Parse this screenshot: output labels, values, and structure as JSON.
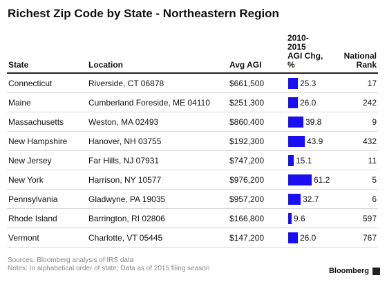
{
  "title": "Richest Zip Code by State - Northeastern Region",
  "headers": {
    "state": "State",
    "location": "Location",
    "avg_agi": "Avg AGI",
    "agi_chg_lines": [
      "2010-",
      "2015",
      "AGI Chg,",
      "%"
    ],
    "rank_lines": [
      "National",
      "Rank"
    ]
  },
  "chart_data": {
    "type": "table",
    "columns": [
      "State",
      "Location",
      "Avg AGI",
      "2010-2015 AGI Chg, %",
      "National Rank"
    ],
    "rows": [
      {
        "state": "Connecticut",
        "location": "Riverside, CT 06878",
        "avg_agi": "$661,500",
        "chg": 25.3,
        "chg_label": "25.3",
        "rank": "17"
      },
      {
        "state": "Maine",
        "location": "Cumberland Foreside, ME 04110",
        "avg_agi": "$251,300",
        "chg": 26.0,
        "chg_label": "26.0",
        "rank": "242"
      },
      {
        "state": "Massachusetts",
        "location": "Weston, MA 02493",
        "avg_agi": "$860,400",
        "chg": 39.8,
        "chg_label": "39.8",
        "rank": "9"
      },
      {
        "state": "New Hampshire",
        "location": "Hanover, NH 03755",
        "avg_agi": "$192,300",
        "chg": 43.9,
        "chg_label": "43.9",
        "rank": "432"
      },
      {
        "state": "New Jersey",
        "location": "Far Hills, NJ 07931",
        "avg_agi": "$747,200",
        "chg": 15.1,
        "chg_label": "15.1",
        "rank": "11"
      },
      {
        "state": "New York",
        "location": "Harrison, NY 10577",
        "avg_agi": "$976,200",
        "chg": 61.2,
        "chg_label": "61.2",
        "rank": "5"
      },
      {
        "state": "Pennsylvania",
        "location": "Gladwyne, PA 19035",
        "avg_agi": "$957,200",
        "chg": 32.7,
        "chg_label": "32.7",
        "rank": "6"
      },
      {
        "state": "Rhode Island",
        "location": "Barrington, RI 02806",
        "avg_agi": "$166,800",
        "chg": 9.6,
        "chg_label": "9.6",
        "rank": "597"
      },
      {
        "state": "Vermont",
        "location": "Charlotte, VT 05445",
        "avg_agi": "$147,200",
        "chg": 26.0,
        "chg_label": "26.0",
        "rank": "767"
      }
    ],
    "bar_color": "#1a0ff0"
  },
  "footer": {
    "sources": "Sources: Bloomberg analysis of IRS data",
    "notes": "Notes: In alphabetical order of state; Data as of 2015 filing season"
  },
  "brand": "Bloomberg"
}
